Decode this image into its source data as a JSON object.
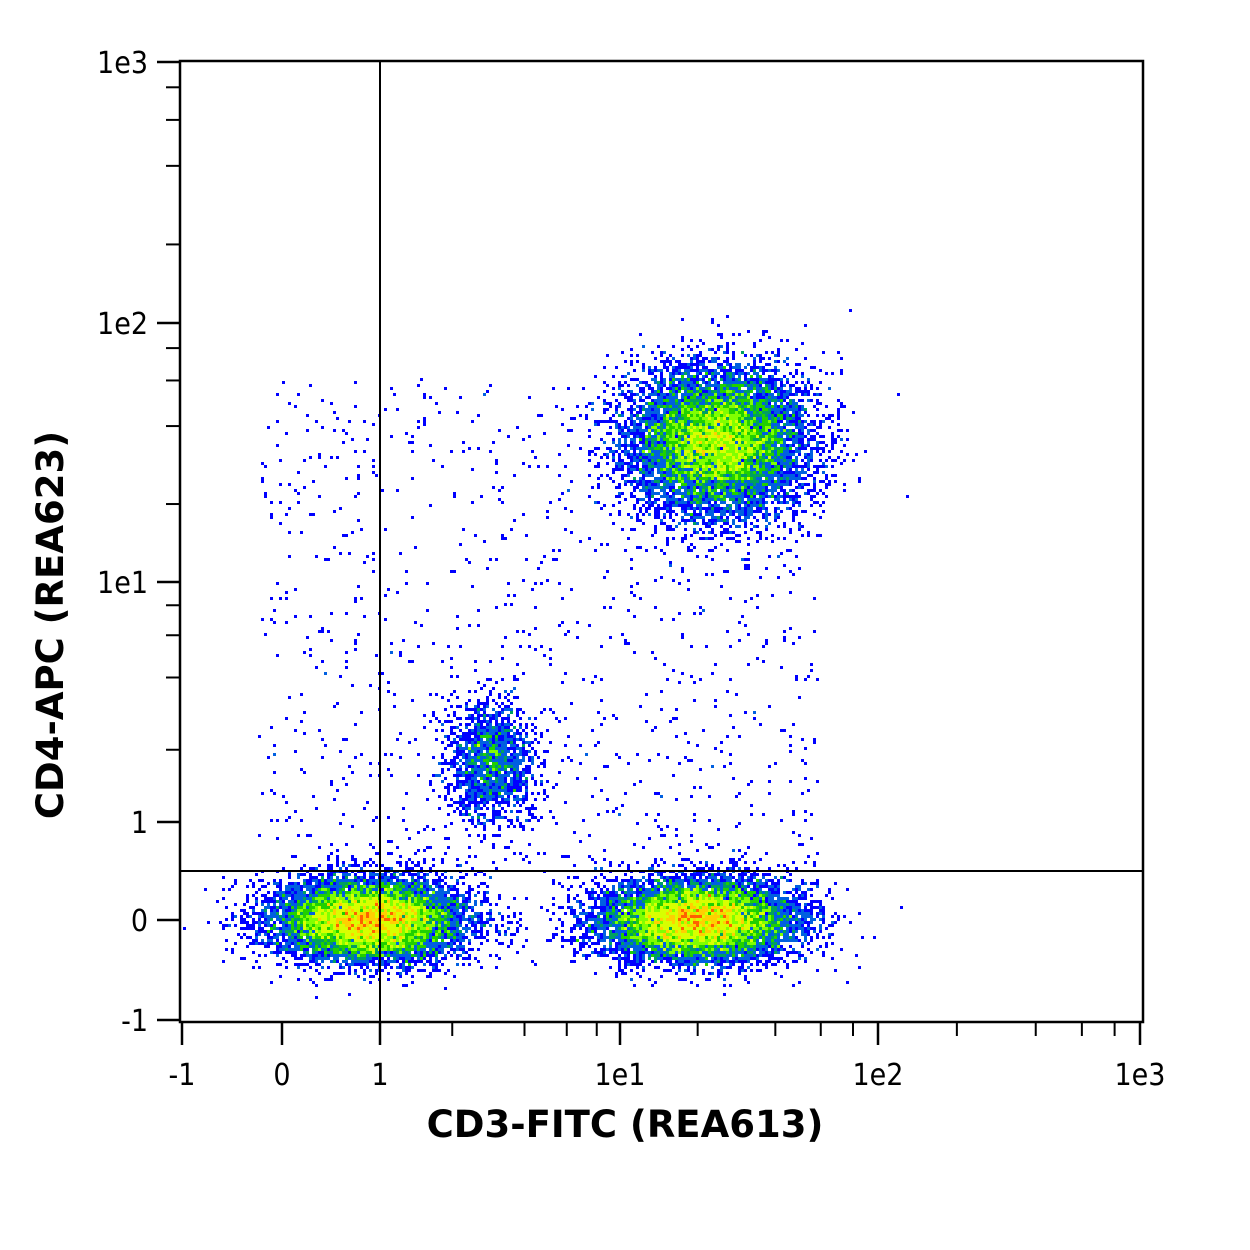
{
  "chart_data": {
    "type": "scatter",
    "subtype": "density-dot-plot",
    "xlabel": "CD3-FITC (REA613)",
    "ylabel": "CD4-APC (REA623)",
    "x_scale": "hybrid-linear-log",
    "y_scale": "hybrid-linear-log",
    "xlim": [
      -1,
      1000
    ],
    "ylim": [
      -1,
      1000
    ],
    "x_ticks": [
      {
        "value": -1,
        "label": "-1"
      },
      {
        "value": 0,
        "label": "0"
      },
      {
        "value": 1,
        "label": "1"
      },
      {
        "value": 10,
        "label": "1e1"
      },
      {
        "value": 100,
        "label": "1e2"
      },
      {
        "value": 1000,
        "label": "1e3"
      }
    ],
    "y_ticks": [
      {
        "value": -1,
        "label": "-1"
      },
      {
        "value": 0,
        "label": "0"
      },
      {
        "value": 1,
        "label": "1"
      },
      {
        "value": 10,
        "label": "1e1"
      },
      {
        "value": 100,
        "label": "1e2"
      },
      {
        "value": 1000,
        "label": "1e3"
      }
    ],
    "quadrant_gate": {
      "x": 1,
      "y": 0.5
    },
    "populations": [
      {
        "x_center": 0.9,
        "y_center": 0,
        "x_range": [
          -0.2,
          2.9
        ],
        "y_range": [
          -0.5,
          0.5
        ],
        "density": "high"
      },
      {
        "x_center": 20,
        "y_center": 0,
        "x_range": [
          7.5,
          65
        ],
        "y_range": [
          -0.5,
          0.5
        ],
        "density": "high"
      },
      {
        "x_center": 24,
        "y_center": 35,
        "x_range": [
          8.5,
          60
        ],
        "y_range": [
          14.5,
          72
        ],
        "density": "high"
      },
      {
        "x_center": 2.9,
        "y_center": 1.8,
        "x_range": [
          1.8,
          5
        ],
        "y_range": [
          0.95,
          3.9
        ],
        "density": "low"
      }
    ],
    "colormap": [
      "#0000ff",
      "#0060e0",
      "#00a060",
      "#20d000",
      "#80ff00",
      "#d8ff00",
      "#ffd000",
      "#ff6000"
    ],
    "grid": false,
    "legend": "none"
  }
}
